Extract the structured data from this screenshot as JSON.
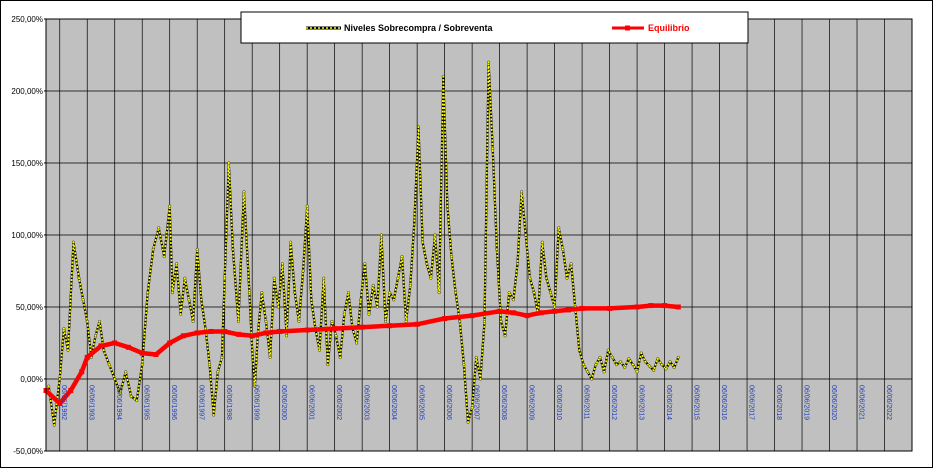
{
  "chart_data": {
    "type": "line",
    "title": "",
    "xlabel": "",
    "ylabel": "",
    "ylim": [
      -50,
      250
    ],
    "y_tick_labels": [
      "250,00%",
      "200,00%",
      "150,00%",
      "100,00%",
      "50,00%",
      "0,00%",
      "-50,00%"
    ],
    "y_tick_values": [
      250,
      200,
      150,
      100,
      50,
      0,
      -50
    ],
    "x_range": [
      1991.5,
      2023.0
    ],
    "x_tick_labels": [
      "06/06/1992",
      "06/06/1993",
      "06/06/1994",
      "06/06/1995",
      "06/06/1996",
      "06/06/1997",
      "06/06/1998",
      "06/06/1999",
      "06/06/2000",
      "06/06/2001",
      "06/06/2002",
      "06/06/2003",
      "06/06/2004",
      "06/06/2005",
      "06/06/2006",
      "06/06/2007",
      "06/06/2008",
      "06/06/2009",
      "06/06/2010",
      "06/06/2011",
      "06/06/2012",
      "06/06/2013",
      "06/06/2014",
      "06/06/2015",
      "06/06/2016",
      "06/06/2017",
      "06/06/2018",
      "06/06/2019",
      "06/06/2020",
      "06/06/2021",
      "06/06/2022"
    ],
    "x_tick_values": [
      1992,
      1993,
      1994,
      1995,
      1996,
      1997,
      1998,
      1999,
      2000,
      2001,
      2002,
      2003,
      2004,
      2005,
      2006,
      2007,
      2008,
      2009,
      2010,
      2011,
      2012,
      2013,
      2014,
      2015,
      2016,
      2017,
      2018,
      2019,
      2020,
      2021,
      2022
    ],
    "grid": true,
    "legend_position": "top-center",
    "series": [
      {
        "name": "Niveles  Sobrecompra / Sobreventa",
        "color": "#ffff00",
        "marker_color": "#000000",
        "x": [
          1991.6,
          1991.8,
          1992.0,
          1992.15,
          1992.3,
          1992.5,
          1992.7,
          1992.85,
          1993.0,
          1993.15,
          1993.3,
          1993.45,
          1993.6,
          1993.8,
          1994.0,
          1994.2,
          1994.4,
          1994.6,
          1994.8,
          1995.0,
          1995.2,
          1995.4,
          1995.6,
          1995.8,
          1996.0,
          1996.1,
          1996.25,
          1996.4,
          1996.55,
          1996.7,
          1996.85,
          1997.0,
          1997.15,
          1997.3,
          1997.45,
          1997.6,
          1997.75,
          1997.9,
          1998.0,
          1998.15,
          1998.3,
          1998.5,
          1998.7,
          1998.9,
          1999.0,
          1999.1,
          1999.2,
          1999.35,
          1999.5,
          1999.65,
          1999.8,
          1999.95,
          2000.1,
          2000.25,
          2000.4,
          2000.55,
          2000.7,
          2000.85,
          2001.0,
          2001.15,
          2001.3,
          2001.45,
          2001.6,
          2001.75,
          2001.9,
          2002.05,
          2002.2,
          2002.35,
          2002.5,
          2002.65,
          2002.8,
          2002.95,
          2003.1,
          2003.25,
          2003.4,
          2003.55,
          2003.7,
          2003.85,
          2004.0,
          2004.15,
          2004.3,
          2004.45,
          2004.6,
          2004.75,
          2004.9,
          2005.05,
          2005.2,
          2005.35,
          2005.5,
          2005.65,
          2005.8,
          2005.95,
          2006.1,
          2006.25,
          2006.4,
          2006.55,
          2006.7,
          2006.85,
          2007.0,
          2007.15,
          2007.3,
          2007.45,
          2007.6,
          2007.75,
          2007.9,
          2008.05,
          2008.2,
          2008.35,
          2008.5,
          2008.65,
          2008.8,
          2008.95,
          2009.1,
          2009.25,
          2009.4,
          2009.55,
          2009.7,
          2009.85,
          2010.0,
          2010.15,
          2010.3,
          2010.45,
          2010.6,
          2010.75,
          2010.9,
          2011.05,
          2011.2,
          2011.35,
          2011.5,
          2011.65,
          2011.8,
          2011.95,
          2012.1,
          2012.25,
          2012.4,
          2012.55,
          2012.7,
          2012.85,
          2013.0,
          2013.15,
          2013.3,
          2013.45,
          2013.6,
          2013.75,
          2013.9,
          2014.05,
          2014.2,
          2014.35,
          2014.5
        ],
        "y": [
          -5,
          -32,
          0,
          35,
          20,
          95,
          70,
          55,
          40,
          15,
          30,
          40,
          20,
          10,
          0,
          -10,
          5,
          -12,
          -15,
          10,
          60,
          90,
          105,
          85,
          120,
          60,
          80,
          45,
          70,
          55,
          40,
          90,
          55,
          35,
          10,
          -25,
          5,
          15,
          70,
          150,
          90,
          40,
          130,
          60,
          20,
          -5,
          30,
          60,
          40,
          15,
          70,
          50,
          80,
          30,
          95,
          60,
          40,
          75,
          120,
          55,
          35,
          20,
          70,
          10,
          40,
          30,
          15,
          45,
          60,
          35,
          25,
          55,
          80,
          45,
          65,
          50,
          100,
          40,
          60,
          55,
          70,
          85,
          40,
          65,
          110,
          175,
          95,
          80,
          70,
          100,
          60,
          210,
          120,
          85,
          60,
          40,
          10,
          -30,
          -20,
          15,
          0,
          40,
          220,
          160,
          90,
          40,
          30,
          60,
          55,
          80,
          130,
          100,
          70,
          60,
          45,
          95,
          70,
          60,
          50,
          105,
          90,
          70,
          80,
          50,
          20,
          10,
          5,
          0,
          10,
          15,
          5,
          20,
          15,
          10,
          12,
          8,
          14,
          10,
          5,
          18,
          12,
          9,
          6,
          14,
          10,
          7,
          12,
          8,
          15
        ]
      },
      {
        "name": "Equilibrio",
        "color": "#ff0000",
        "x": [
          1991.5,
          1992.0,
          1992.4,
          1992.8,
          1993.0,
          1993.5,
          1994.0,
          1994.5,
          1995.0,
          1995.5,
          1996.0,
          1996.5,
          1997.0,
          1997.5,
          1998.0,
          1998.5,
          1999.0,
          1999.5,
          2000.0,
          2001.0,
          2002.0,
          2003.0,
          2004.0,
          2005.0,
          2006.0,
          2007.0,
          2008.0,
          2008.5,
          2009.0,
          2009.5,
          2010.0,
          2010.5,
          2011.0,
          2012.0,
          2013.0,
          2013.5,
          2014.0,
          2014.5
        ],
        "y": [
          -8,
          -17,
          -8,
          5,
          15,
          23,
          25,
          22,
          18,
          17,
          25,
          30,
          32,
          33,
          33,
          31,
          30,
          32,
          33,
          34,
          35,
          36,
          37,
          38,
          42,
          44,
          47,
          46,
          44,
          46,
          47,
          48,
          49,
          49,
          50,
          51,
          51,
          50
        ]
      }
    ]
  }
}
